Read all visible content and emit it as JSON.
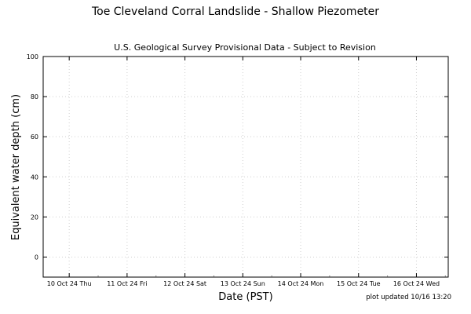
{
  "chart_data": {
    "type": "line",
    "title": "Toe Cleveland Corral Landslide - Shallow Piezometer",
    "subtitle": "U.S. Geological Survey Provisional Data - Subject to Revision",
    "xlabel": "Date (PST)",
    "ylabel": "Equivalent water depth (cm)",
    "footnote": "plot updated 10/16 13:20",
    "x_ticks": [
      "10 Oct 24 Thu",
      "11 Oct 24 Fri",
      "12 Oct 24 Sat",
      "13 Oct 24 Sun",
      "14 Oct 24 Mon",
      "15 Oct 24 Tue",
      "16 Oct 24 Wed"
    ],
    "x_tick_days": [
      10,
      11,
      12,
      13,
      14,
      15,
      16
    ],
    "x_range": [
      9.55,
      16.55
    ],
    "y_ticks": [
      "0",
      "20",
      "40",
      "60",
      "80",
      "100"
    ],
    "y_tick_values": [
      0,
      20,
      40,
      60,
      80,
      100
    ],
    "ylim": [
      -10,
      100
    ],
    "grid": true,
    "series": []
  }
}
